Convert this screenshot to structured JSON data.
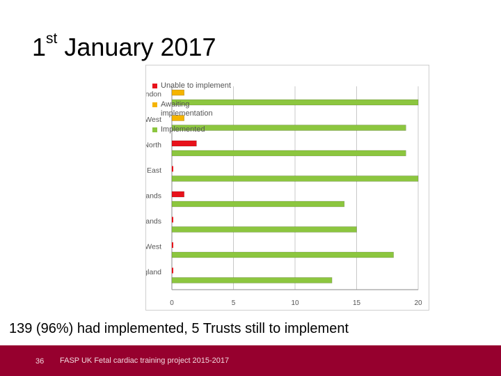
{
  "slide": {
    "title_main": "1",
    "title_sup": "st",
    "title_rest": " January 2017",
    "summary": "139 (96%) had implemented,  5 Trusts still  to implement",
    "footer_page": "36",
    "footer_text": "FASP UK Fetal cardiac training project 2015-2017"
  },
  "chart_data": {
    "type": "bar",
    "orientation": "horizontal",
    "categories": [
      "London",
      "NorthWest",
      "North",
      "South East",
      "West Midlands",
      "East Midlands",
      "South West",
      "East of England"
    ],
    "series": [
      {
        "name": "Unable to implement",
        "color": "#e8121b",
        "values": [
          0,
          0,
          2,
          0,
          1,
          0,
          0,
          0
        ]
      },
      {
        "name": "Awaiting implementation",
        "color": "#f5b400",
        "values": [
          1,
          1,
          0,
          0,
          0,
          0,
          0,
          0
        ]
      },
      {
        "name": "Implemented",
        "color": "#8cc63f",
        "values": [
          20,
          19,
          19,
          20,
          14,
          15,
          18,
          13
        ]
      }
    ],
    "xlim": [
      0,
      20
    ],
    "xticks": [
      "0",
      "5",
      "10",
      "15",
      "20"
    ],
    "xtick_values": [
      0,
      5,
      10,
      15,
      20
    ],
    "grid": true,
    "legend_position": "top-left"
  }
}
